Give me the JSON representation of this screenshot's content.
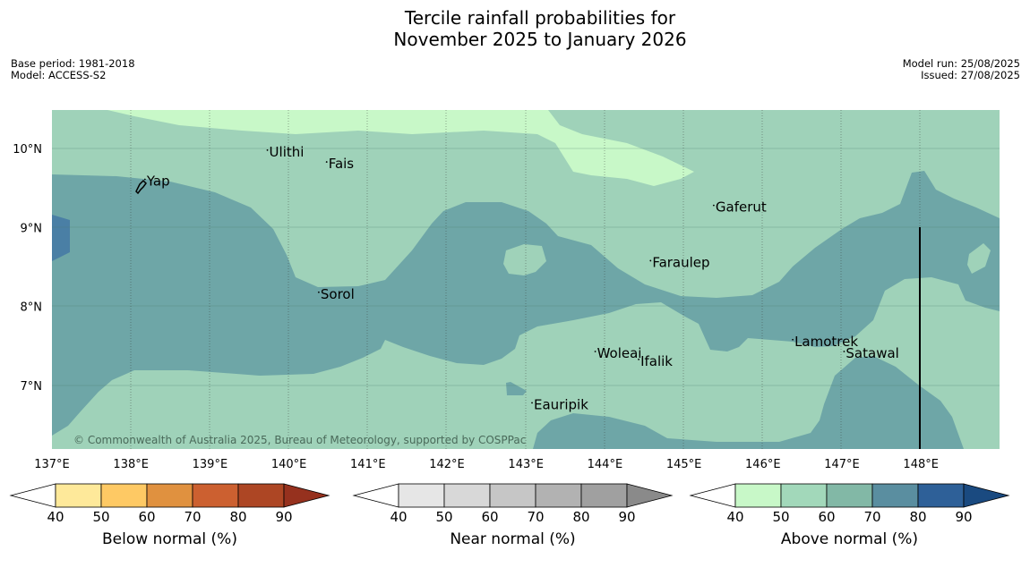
{
  "title": {
    "line1": "Tercile rainfall probabilities for",
    "line2": "November 2025 to January 2026"
  },
  "meta_left": {
    "base_period": "Base period: 1981-2018",
    "model": "Model: ACCESS-S2"
  },
  "meta_right": {
    "model_run": "Model run: 25/08/2025",
    "issued": "Issued: 27/08/2025"
  },
  "map": {
    "lat_labels": [
      "10°N",
      "9°N",
      "8°N",
      "7°N"
    ],
    "lon_labels": [
      "137°E",
      "138°E",
      "139°E",
      "140°E",
      "141°E",
      "142°E",
      "143°E",
      "144°E",
      "145°E",
      "146°E",
      "147°E",
      "148°E"
    ],
    "places": [
      {
        "name": "Yap",
        "lon": 138.2,
        "lat": 9.53
      },
      {
        "name": "Ulithi",
        "lon": 139.75,
        "lat": 9.9
      },
      {
        "name": "Fais",
        "lon": 140.5,
        "lat": 9.75
      },
      {
        "name": "Sorol",
        "lon": 140.4,
        "lat": 8.1
      },
      {
        "name": "Gaferut",
        "lon": 145.4,
        "lat": 9.2
      },
      {
        "name": "Faraulep",
        "lon": 144.6,
        "lat": 8.5
      },
      {
        "name": "Woleai",
        "lon": 143.9,
        "lat": 7.35
      },
      {
        "name": "Ifalik",
        "lon": 144.45,
        "lat": 7.25
      },
      {
        "name": "Lamotrek",
        "lon": 146.4,
        "lat": 7.5
      },
      {
        "name": "Satawal",
        "lon": 147.05,
        "lat": 7.35
      },
      {
        "name": "Eauripik",
        "lon": 143.1,
        "lat": 6.7
      }
    ],
    "copyright": "© Commonwealth of Australia 2025, Bureau of Meteorology, supported by COSPPac",
    "colors": {
      "above_50_60": "#9fd2b9",
      "above_60_70": "#6ea6a7",
      "above_70_80": "#4a7fa5",
      "above_40_50": "#c8f8c8",
      "land": "#000000"
    }
  },
  "colorbars": [
    {
      "label": "Below normal (%)",
      "ticks": [
        "40",
        "50",
        "60",
        "70",
        "80",
        "90"
      ],
      "colors": [
        "#ffffff",
        "#fee99a",
        "#fec964",
        "#e0913f",
        "#cc6030",
        "#ad4624",
        "#96311e"
      ]
    },
    {
      "label": "Near normal (%)",
      "ticks": [
        "40",
        "50",
        "60",
        "70",
        "80",
        "90"
      ],
      "colors": [
        "#ffffff",
        "#e6e6e6",
        "#d8d8d8",
        "#c6c6c6",
        "#b2b2b2",
        "#a0a0a0",
        "#8a8a8a"
      ]
    },
    {
      "label": "Above normal (%)",
      "ticks": [
        "40",
        "50",
        "60",
        "70",
        "80",
        "90"
      ],
      "colors": [
        "#ffffff",
        "#c8f8c8",
        "#a2d8ba",
        "#82b8a6",
        "#5a8ea0",
        "#2e6098",
        "#1a4a80"
      ]
    }
  ]
}
